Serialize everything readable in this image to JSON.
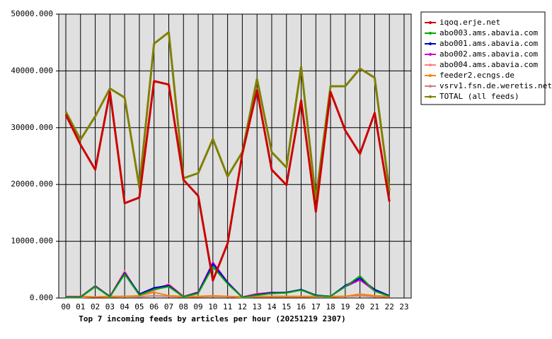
{
  "chart_data": {
    "type": "line",
    "title": "Top 7 incoming feeds by articles per hour (20251219 2307)",
    "categories": [
      "00",
      "01",
      "02",
      "03",
      "04",
      "05",
      "06",
      "07",
      "08",
      "09",
      "10",
      "11",
      "12",
      "13",
      "14",
      "15",
      "16",
      "17",
      "18",
      "19",
      "20",
      "21",
      "22",
      "23"
    ],
    "ylim": [
      0,
      50000
    ],
    "yticks": [
      {
        "value": 0,
        "label": "0.000"
      },
      {
        "value": 10000,
        "label": "10000.000"
      },
      {
        "value": 20000,
        "label": "20000.000"
      },
      {
        "value": 30000,
        "label": "30000.000"
      },
      {
        "value": 40000,
        "label": "40000.000"
      },
      {
        "value": 50000,
        "label": "50000.000"
      }
    ],
    "grid": true,
    "series": [
      {
        "name": "iqoq.erje.net",
        "color": "#cc0000",
        "values": [
          32300,
          27000,
          22600,
          36300,
          16700,
          17700,
          38200,
          37600,
          20800,
          18000,
          3100,
          9600,
          25400,
          36600,
          22600,
          19900,
          34800,
          15200,
          36300,
          29500,
          25400,
          32600,
          17000,
          null
        ]
      },
      {
        "name": "abo003.ams.abavia.com",
        "color": "#00aa00",
        "values": [
          100,
          100,
          2000,
          200,
          4200,
          500,
          1500,
          2000,
          200,
          800,
          5500,
          2500,
          100,
          500,
          800,
          900,
          1400,
          400,
          300,
          2000,
          3900,
          1200,
          300,
          null
        ]
      },
      {
        "name": "abo001.ams.abavia.com",
        "color": "#0000cc",
        "values": [
          150,
          150,
          2100,
          250,
          4400,
          700,
          1800,
          2200,
          200,
          900,
          6000,
          2700,
          100,
          600,
          900,
          1000,
          1500,
          500,
          300,
          2200,
          3500,
          1500,
          400,
          null
        ]
      },
      {
        "name": "abo002.ams.abavia.com",
        "color": "#cc00cc",
        "values": [
          200,
          200,
          2000,
          300,
          4500,
          600,
          1700,
          2300,
          250,
          1000,
          6300,
          2800,
          150,
          700,
          1000,
          900,
          1500,
          450,
          300,
          2000,
          3200,
          1300,
          350,
          null
        ]
      },
      {
        "name": "abo004.ams.abavia.com",
        "color": "#ff8080",
        "values": [
          250,
          250,
          2200,
          300,
          4800,
          500,
          1300,
          2500,
          300,
          1100,
          5500,
          2600,
          200,
          800,
          900,
          1000,
          1500,
          400,
          350,
          2100,
          3300,
          1200,
          400,
          null
        ]
      },
      {
        "name": "feeder2.ecngs.de",
        "color": "#ff8000",
        "values": [
          300,
          300,
          200,
          300,
          300,
          400,
          1000,
          400,
          300,
          300,
          400,
          300,
          200,
          300,
          300,
          300,
          300,
          300,
          300,
          300,
          700,
          400,
          300,
          null
        ]
      },
      {
        "name": "vsrv1.fsn.de.weretis.net",
        "color": "#cc8080",
        "values": [
          100,
          100,
          200,
          150,
          300,
          200,
          400,
          300,
          150,
          200,
          300,
          250,
          100,
          200,
          200,
          200,
          200,
          150,
          150,
          300,
          400,
          250,
          150,
          null
        ]
      },
      {
        "name": "TOTAL (all feeds)",
        "color": "#808000",
        "values": [
          32800,
          27900,
          32000,
          36900,
          35300,
          19500,
          44800,
          46800,
          21100,
          22000,
          28000,
          21400,
          25700,
          38600,
          25700,
          23000,
          40700,
          17400,
          37300,
          37300,
          40400,
          38800,
          18900,
          null
        ]
      }
    ]
  }
}
